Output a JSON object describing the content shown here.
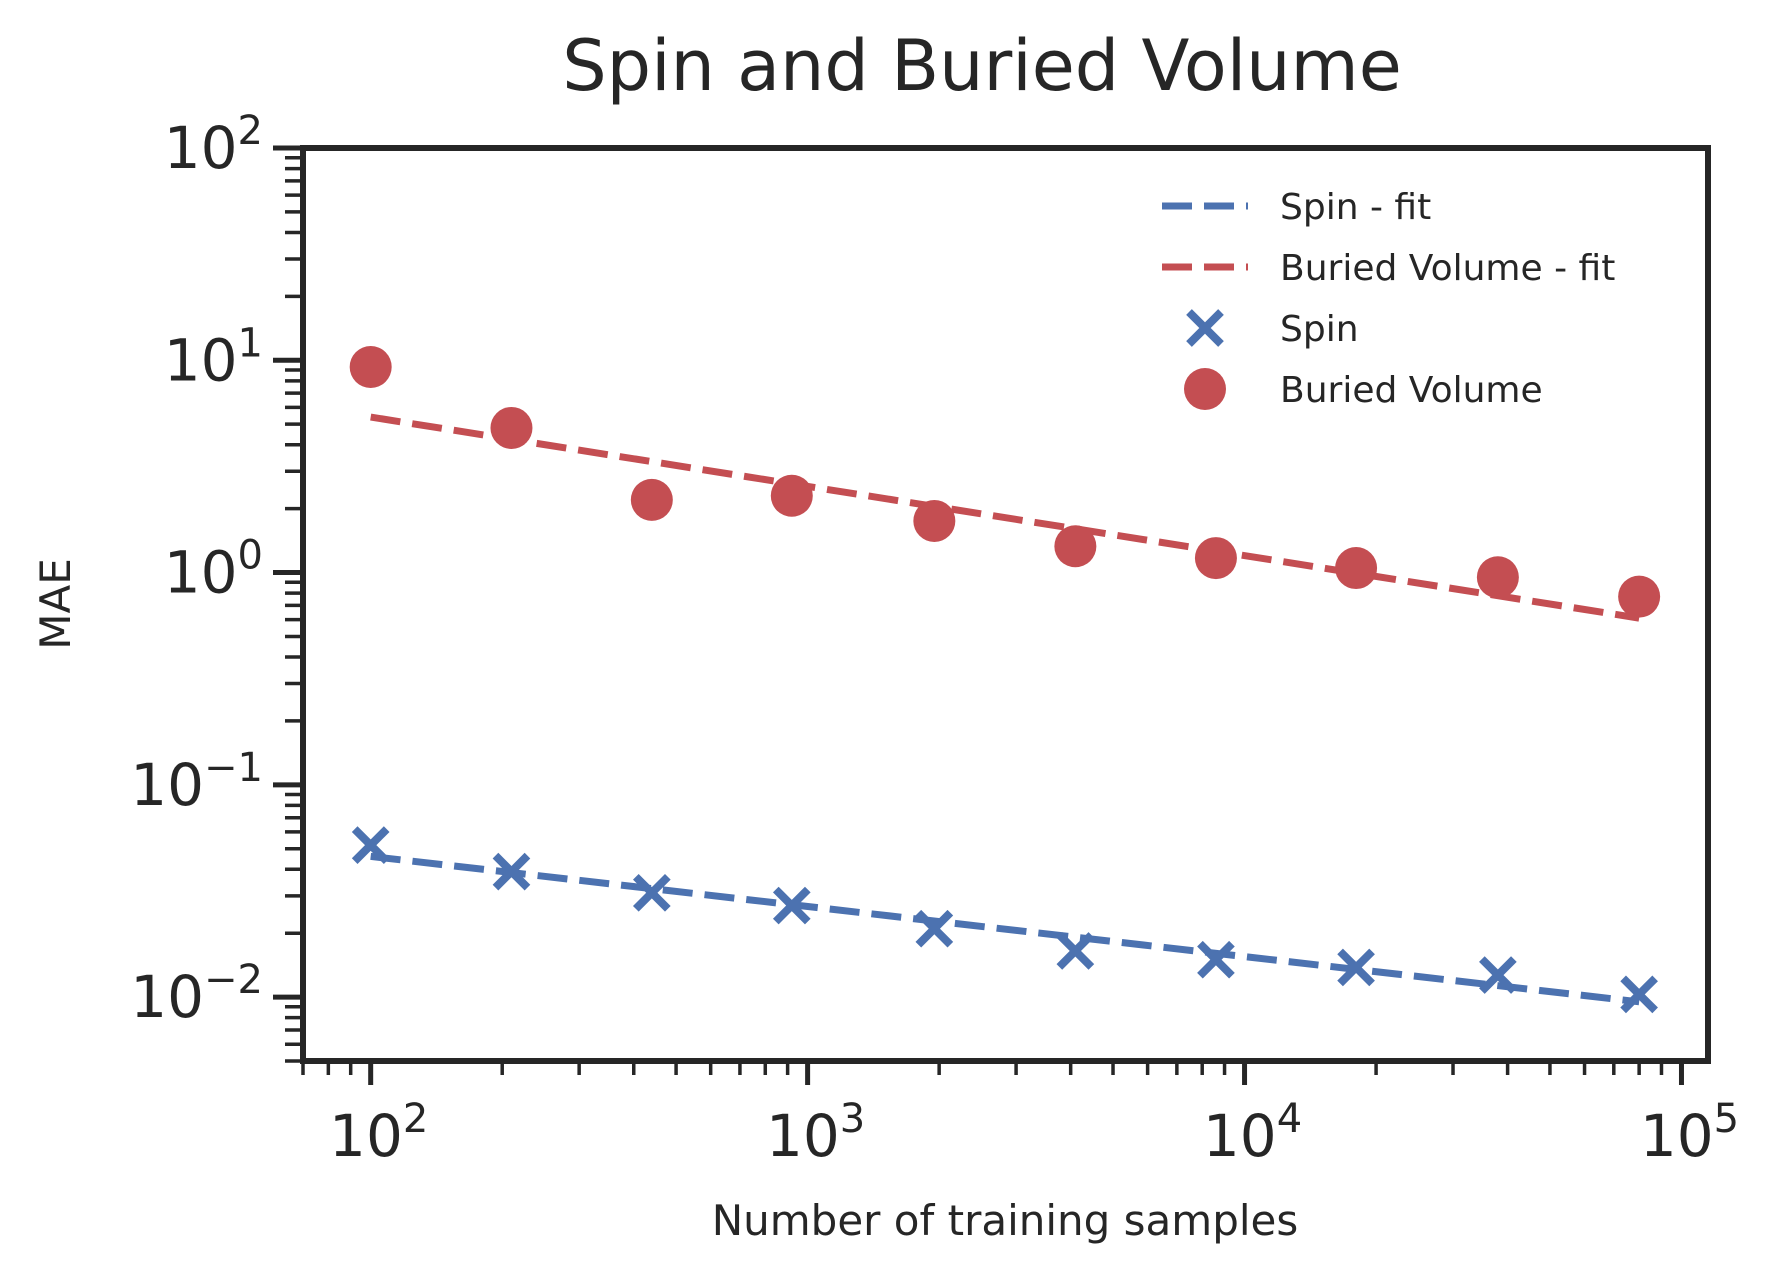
{
  "chart_data": {
    "type": "scatter",
    "title": "Spin and Buried Volume",
    "xlabel": "Number of training samples",
    "ylabel": "MAE",
    "x_scale": "log",
    "y_scale": "log",
    "xlim": [
      70,
      115000
    ],
    "ylim": [
      0.005,
      100
    ],
    "x_ticks": [
      {
        "base": "10",
        "exp": "2",
        "value": 100
      },
      {
        "base": "10",
        "exp": "3",
        "value": 1000
      },
      {
        "base": "10",
        "exp": "4",
        "value": 10000
      },
      {
        "base": "10",
        "exp": "5",
        "value": 100000
      }
    ],
    "y_ticks": [
      {
        "base": "10",
        "exp": "2",
        "value": 100
      },
      {
        "base": "10",
        "exp": "1",
        "value": 10
      },
      {
        "base": "10",
        "exp": "0",
        "value": 1
      },
      {
        "base": "10",
        "exp": "−1",
        "value": 0.1
      },
      {
        "base": "10",
        "exp": "−2",
        "value": 0.01
      }
    ],
    "legend_position": "top-right",
    "series": [
      {
        "name": "Spin - fit",
        "kind": "line",
        "style": "dashed",
        "color": "#4c72b0",
        "x": [
          100,
          80000
        ],
        "y": [
          0.046,
          0.0095
        ]
      },
      {
        "name": "Buried Volume - fit",
        "kind": "line",
        "style": "dashed",
        "color": "#c44e52",
        "x": [
          100,
          80000
        ],
        "y": [
          5.4,
          0.61
        ]
      },
      {
        "name": "Spin",
        "kind": "scatter",
        "marker": "x",
        "color": "#4c72b0",
        "x": [
          100,
          210,
          440,
          920,
          1950,
          4100,
          8600,
          18000,
          38000,
          80000
        ],
        "y": [
          0.052,
          0.039,
          0.031,
          0.027,
          0.021,
          0.0165,
          0.015,
          0.0138,
          0.0127,
          0.0103
        ]
      },
      {
        "name": "Buried Volume",
        "kind": "scatter",
        "marker": "o",
        "color": "#c44e52",
        "x": [
          100,
          210,
          440,
          920,
          1950,
          4100,
          8600,
          18000,
          38000,
          80000
        ],
        "y": [
          9.3,
          4.8,
          2.2,
          2.3,
          1.75,
          1.33,
          1.17,
          1.05,
          0.95,
          0.77
        ]
      }
    ]
  }
}
